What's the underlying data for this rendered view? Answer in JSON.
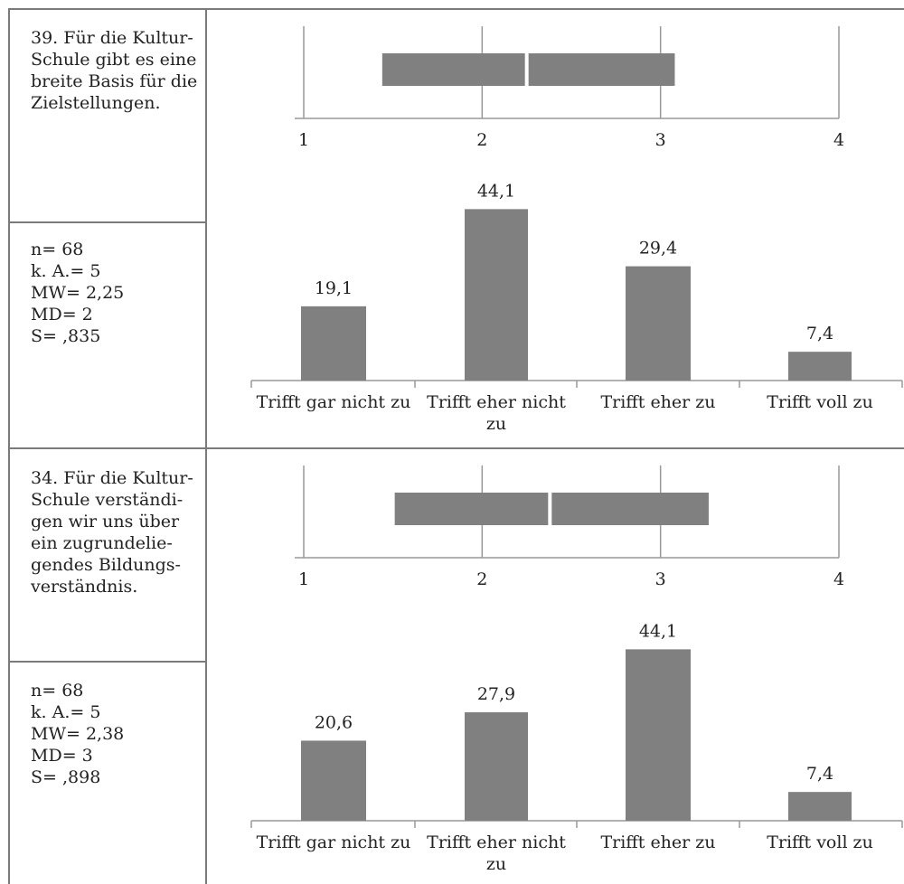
{
  "questions": [
    {
      "question_lines": [
        "39. Für die Kultur-",
        "Schule gibt es eine",
        "breite Basis für die",
        "Zielstellungen."
      ],
      "stats": [
        "n= 68",
        "k. A.= 5",
        "MW= 2,25",
        "MD= 2",
        "S= ,835"
      ]
    },
    {
      "question_lines": [
        "34. Für die Kultur-",
        "Schule verständi-",
        "gen wir uns über",
        "ein zugrundelie-",
        "gendes Bildungs-",
        "verständnis."
      ],
      "stats": [
        "n= 68",
        "k. A.= 5",
        "MW= 2,38",
        "MD= 3",
        "S= ,898"
      ]
    }
  ],
  "chart_data": [
    {
      "type": "box",
      "axis_ticks": [
        "1",
        "2",
        "3",
        "4"
      ],
      "xlim": [
        1,
        4
      ],
      "low": 1.44,
      "median": 2.25,
      "high": 3.08,
      "color": "#808080"
    },
    {
      "type": "bar",
      "categories": [
        "Trifft gar nicht zu",
        "Trifft eher nicht zu",
        "Trifft eher zu",
        "Trifft voll zu"
      ],
      "values": [
        19.1,
        44.1,
        29.4,
        7.4
      ],
      "value_labels": [
        "19,1",
        "44,1",
        "29,4",
        "7,4"
      ],
      "ylim": [
        0,
        50
      ],
      "color": "#808080"
    },
    {
      "type": "box",
      "axis_ticks": [
        "1",
        "2",
        "3",
        "4"
      ],
      "xlim": [
        1,
        4
      ],
      "low": 1.51,
      "median": 2.38,
      "high": 3.27,
      "color": "#808080"
    },
    {
      "type": "bar",
      "categories": [
        "Trifft gar nicht zu",
        "Trifft eher nicht zu",
        "Trifft eher zu",
        "Trifft voll zu"
      ],
      "values": [
        20.6,
        27.9,
        44.1,
        7.4
      ],
      "value_labels": [
        "20,6",
        "27,9",
        "44,1",
        "7,4"
      ],
      "ylim": [
        0,
        50
      ],
      "color": "#808080"
    }
  ]
}
